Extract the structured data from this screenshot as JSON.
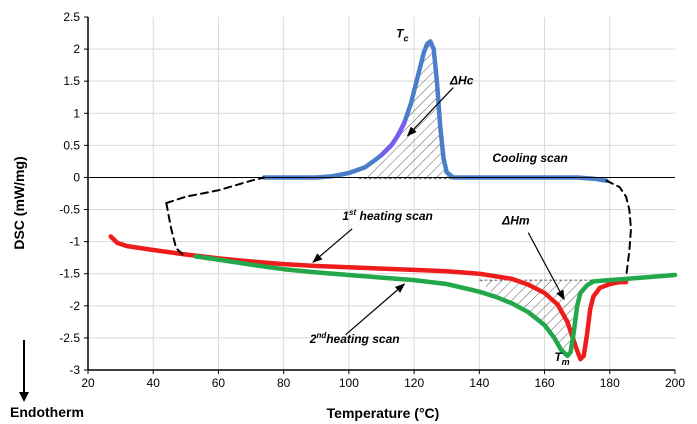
{
  "chart_data": {
    "type": "line",
    "xlabel": "Temperature (°C)",
    "ylabel": "DSC (mW/mg)",
    "footnote": "Endotherm",
    "xlim": [
      20,
      200
    ],
    "ylim": [
      -3,
      2.5
    ],
    "xticks": [
      20,
      40,
      60,
      80,
      100,
      120,
      140,
      160,
      180,
      200
    ],
    "yticks": [
      2.5,
      2,
      1.5,
      1,
      0.5,
      0,
      -0.5,
      -1,
      -1.5,
      -2,
      -2.5,
      -3
    ],
    "xtick_labels": [
      "20",
      "40",
      "60",
      "80",
      "100",
      "120",
      "140",
      "160",
      "180",
      "200"
    ],
    "ytick_labels": [
      "2.5",
      "2",
      "1.5",
      "1",
      "0.5",
      "0",
      "-0.5",
      "-1",
      "-1.5",
      "-2",
      "-2.5",
      "-3"
    ],
    "grid": true,
    "colors": {
      "cooling": "#4a7ec8",
      "cooling_peak": "#7a5cf0",
      "heating1": "#ee1c1c",
      "heating2": "#22a84a",
      "axis": "#000000",
      "grid": "#d9d9d9"
    },
    "series": [
      {
        "key": "cooling",
        "values": [
          [
            74,
            0
          ],
          [
            80,
            0
          ],
          [
            90,
            0
          ],
          [
            95,
            0.02
          ],
          [
            100,
            0.07
          ],
          [
            105,
            0.16
          ],
          [
            108,
            0.27
          ],
          [
            110,
            0.35
          ],
          [
            113,
            0.5
          ],
          [
            115,
            0.65
          ],
          [
            117,
            0.85
          ],
          [
            119,
            1.15
          ],
          [
            121,
            1.55
          ],
          [
            123,
            1.95
          ],
          [
            124,
            2.08
          ],
          [
            125,
            2.12
          ],
          [
            126,
            2.0
          ],
          [
            127,
            1.5
          ],
          [
            128,
            0.8
          ],
          [
            129,
            0.3
          ],
          [
            130,
            0.08
          ],
          [
            132,
            0.0
          ],
          [
            140,
            0.0
          ],
          [
            150,
            0.0
          ],
          [
            160,
            0.0
          ],
          [
            170,
            0.0
          ],
          [
            175,
            -0.02
          ],
          [
            179,
            -0.05
          ]
        ]
      },
      {
        "key": "heating1",
        "values": [
          [
            27,
            -0.92
          ],
          [
            29,
            -1.02
          ],
          [
            32,
            -1.07
          ],
          [
            40,
            -1.13
          ],
          [
            50,
            -1.2
          ],
          [
            60,
            -1.26
          ],
          [
            70,
            -1.31
          ],
          [
            80,
            -1.35
          ],
          [
            90,
            -1.38
          ],
          [
            100,
            -1.4
          ],
          [
            110,
            -1.42
          ],
          [
            120,
            -1.44
          ],
          [
            130,
            -1.46
          ],
          [
            140,
            -1.5
          ],
          [
            150,
            -1.58
          ],
          [
            155,
            -1.67
          ],
          [
            160,
            -1.8
          ],
          [
            164,
            -1.98
          ],
          [
            167,
            -2.25
          ],
          [
            169,
            -2.55
          ],
          [
            170,
            -2.7
          ],
          [
            171,
            -2.83
          ],
          [
            172,
            -2.78
          ],
          [
            173,
            -2.45
          ],
          [
            174,
            -2.05
          ],
          [
            175,
            -1.85
          ],
          [
            177,
            -1.72
          ],
          [
            180,
            -1.66
          ],
          [
            183,
            -1.63
          ],
          [
            185,
            -1.63
          ]
        ]
      },
      {
        "key": "heating2",
        "values": [
          [
            53,
            -1.23
          ],
          [
            60,
            -1.28
          ],
          [
            70,
            -1.36
          ],
          [
            80,
            -1.43
          ],
          [
            90,
            -1.48
          ],
          [
            100,
            -1.52
          ],
          [
            110,
            -1.56
          ],
          [
            120,
            -1.6
          ],
          [
            130,
            -1.66
          ],
          [
            140,
            -1.78
          ],
          [
            145,
            -1.86
          ],
          [
            150,
            -1.96
          ],
          [
            155,
            -2.1
          ],
          [
            160,
            -2.3
          ],
          [
            163,
            -2.5
          ],
          [
            165,
            -2.68
          ],
          [
            167,
            -2.78
          ],
          [
            168,
            -2.72
          ],
          [
            169,
            -2.4
          ],
          [
            170,
            -2.0
          ],
          [
            171,
            -1.8
          ],
          [
            173,
            -1.68
          ],
          [
            175,
            -1.62
          ],
          [
            180,
            -1.6
          ],
          [
            190,
            -1.56
          ],
          [
            200,
            -1.52
          ]
        ]
      },
      {
        "key": "dashed",
        "values": [
          [
            44,
            -0.4
          ],
          [
            50,
            -0.3
          ],
          [
            60,
            -0.2
          ],
          [
            70,
            -0.05
          ],
          [
            74,
            0
          ]
        ]
      },
      {
        "key": "dashed",
        "values": [
          [
            44,
            -0.4
          ],
          [
            45.5,
            -0.8
          ],
          [
            47,
            -1.1
          ],
          [
            49,
            -1.2
          ]
        ]
      },
      {
        "key": "dashed",
        "values": [
          [
            179,
            -0.05
          ],
          [
            183,
            -0.15
          ],
          [
            185,
            -0.3
          ],
          [
            186,
            -0.5
          ],
          [
            186.5,
            -0.8
          ],
          [
            186,
            -1.15
          ],
          [
            185,
            -1.55
          ]
        ]
      }
    ],
    "hatch_regions": [
      [
        [
          103,
          -0.02
        ],
        [
          108,
          0.27
        ],
        [
          113,
          0.5
        ],
        [
          117,
          0.85
        ],
        [
          121,
          1.55
        ],
        [
          124,
          2.08
        ],
        [
          125,
          2.12
        ],
        [
          126,
          2.0
        ],
        [
          128,
          0.8
        ],
        [
          130,
          0.08
        ],
        [
          132,
          -0.02
        ]
      ],
      [
        [
          140,
          -1.6
        ],
        [
          145,
          -1.86
        ],
        [
          150,
          -1.96
        ],
        [
          155,
          -2.1
        ],
        [
          160,
          -2.3
        ],
        [
          163,
          -2.5
        ],
        [
          165,
          -2.68
        ],
        [
          167,
          -2.78
        ],
        [
          168,
          -2.72
        ],
        [
          169,
          -2.4
        ],
        [
          170,
          -2.0
        ],
        [
          171,
          -1.8
        ],
        [
          173,
          -1.68
        ],
        [
          175,
          -1.62
        ],
        [
          180,
          -1.6
        ]
      ]
    ],
    "annotations": [
      {
        "key": "tc",
        "text": "T",
        "sub": "c",
        "x": 114.5,
        "y": 2.18
      },
      {
        "key": "dhc",
        "text": "ΔHc",
        "x": 131,
        "y": 1.45
      },
      {
        "key": "cooling_scan",
        "text": "Cooling scan",
        "x": 144,
        "y": 0.24
      },
      {
        "key": "h1",
        "text": "1",
        "sup": "st",
        "tail": " heating scan",
        "x": 98,
        "y": -0.66
      },
      {
        "key": "dhm",
        "text": "ΔHm",
        "x": 147,
        "y": -0.73
      },
      {
        "key": "h2",
        "text": "2",
        "sup": "nd",
        "tail": "heating scan",
        "x": 88,
        "y": -2.58
      },
      {
        "key": "tm",
        "text": "T",
        "sub": "m",
        "x": 163,
        "y": -2.86
      }
    ],
    "arrows": [
      {
        "from": [
          132,
          1.4
        ],
        "to": [
          118,
          0.65
        ]
      },
      {
        "from": [
          101,
          -0.8
        ],
        "to": [
          89,
          -1.32
        ]
      },
      {
        "from": [
          155,
          -0.86
        ],
        "to": [
          166,
          -1.9
        ]
      },
      {
        "from": [
          99,
          -2.45
        ],
        "to": [
          117,
          -1.66
        ]
      }
    ]
  }
}
